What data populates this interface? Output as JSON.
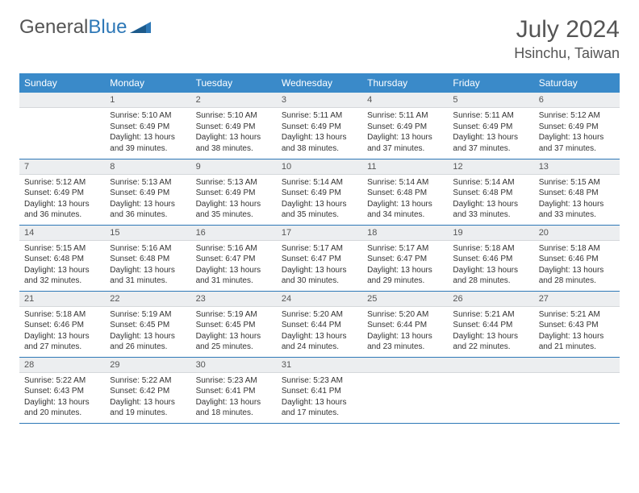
{
  "brand": {
    "part1": "General",
    "part2": "Blue"
  },
  "title": "July 2024",
  "location": "Hsinchu, Taiwan",
  "colors": {
    "header_bg": "#3a8ac9",
    "border": "#2e78b7",
    "daynum_bg": "#eceef0",
    "text": "#333333",
    "muted": "#555555"
  },
  "dayHeaders": [
    "Sunday",
    "Monday",
    "Tuesday",
    "Wednesday",
    "Thursday",
    "Friday",
    "Saturday"
  ],
  "weeks": [
    [
      null,
      {
        "n": "1",
        "sr": "5:10 AM",
        "ss": "6:49 PM",
        "dl": "13 hours and 39 minutes."
      },
      {
        "n": "2",
        "sr": "5:10 AM",
        "ss": "6:49 PM",
        "dl": "13 hours and 38 minutes."
      },
      {
        "n": "3",
        "sr": "5:11 AM",
        "ss": "6:49 PM",
        "dl": "13 hours and 38 minutes."
      },
      {
        "n": "4",
        "sr": "5:11 AM",
        "ss": "6:49 PM",
        "dl": "13 hours and 37 minutes."
      },
      {
        "n": "5",
        "sr": "5:11 AM",
        "ss": "6:49 PM",
        "dl": "13 hours and 37 minutes."
      },
      {
        "n": "6",
        "sr": "5:12 AM",
        "ss": "6:49 PM",
        "dl": "13 hours and 37 minutes."
      }
    ],
    [
      {
        "n": "7",
        "sr": "5:12 AM",
        "ss": "6:49 PM",
        "dl": "13 hours and 36 minutes."
      },
      {
        "n": "8",
        "sr": "5:13 AM",
        "ss": "6:49 PM",
        "dl": "13 hours and 36 minutes."
      },
      {
        "n": "9",
        "sr": "5:13 AM",
        "ss": "6:49 PM",
        "dl": "13 hours and 35 minutes."
      },
      {
        "n": "10",
        "sr": "5:14 AM",
        "ss": "6:49 PM",
        "dl": "13 hours and 35 minutes."
      },
      {
        "n": "11",
        "sr": "5:14 AM",
        "ss": "6:48 PM",
        "dl": "13 hours and 34 minutes."
      },
      {
        "n": "12",
        "sr": "5:14 AM",
        "ss": "6:48 PM",
        "dl": "13 hours and 33 minutes."
      },
      {
        "n": "13",
        "sr": "5:15 AM",
        "ss": "6:48 PM",
        "dl": "13 hours and 33 minutes."
      }
    ],
    [
      {
        "n": "14",
        "sr": "5:15 AM",
        "ss": "6:48 PM",
        "dl": "13 hours and 32 minutes."
      },
      {
        "n": "15",
        "sr": "5:16 AM",
        "ss": "6:48 PM",
        "dl": "13 hours and 31 minutes."
      },
      {
        "n": "16",
        "sr": "5:16 AM",
        "ss": "6:47 PM",
        "dl": "13 hours and 31 minutes."
      },
      {
        "n": "17",
        "sr": "5:17 AM",
        "ss": "6:47 PM",
        "dl": "13 hours and 30 minutes."
      },
      {
        "n": "18",
        "sr": "5:17 AM",
        "ss": "6:47 PM",
        "dl": "13 hours and 29 minutes."
      },
      {
        "n": "19",
        "sr": "5:18 AM",
        "ss": "6:46 PM",
        "dl": "13 hours and 28 minutes."
      },
      {
        "n": "20",
        "sr": "5:18 AM",
        "ss": "6:46 PM",
        "dl": "13 hours and 28 minutes."
      }
    ],
    [
      {
        "n": "21",
        "sr": "5:18 AM",
        "ss": "6:46 PM",
        "dl": "13 hours and 27 minutes."
      },
      {
        "n": "22",
        "sr": "5:19 AM",
        "ss": "6:45 PM",
        "dl": "13 hours and 26 minutes."
      },
      {
        "n": "23",
        "sr": "5:19 AM",
        "ss": "6:45 PM",
        "dl": "13 hours and 25 minutes."
      },
      {
        "n": "24",
        "sr": "5:20 AM",
        "ss": "6:44 PM",
        "dl": "13 hours and 24 minutes."
      },
      {
        "n": "25",
        "sr": "5:20 AM",
        "ss": "6:44 PM",
        "dl": "13 hours and 23 minutes."
      },
      {
        "n": "26",
        "sr": "5:21 AM",
        "ss": "6:44 PM",
        "dl": "13 hours and 22 minutes."
      },
      {
        "n": "27",
        "sr": "5:21 AM",
        "ss": "6:43 PM",
        "dl": "13 hours and 21 minutes."
      }
    ],
    [
      {
        "n": "28",
        "sr": "5:22 AM",
        "ss": "6:43 PM",
        "dl": "13 hours and 20 minutes."
      },
      {
        "n": "29",
        "sr": "5:22 AM",
        "ss": "6:42 PM",
        "dl": "13 hours and 19 minutes."
      },
      {
        "n": "30",
        "sr": "5:23 AM",
        "ss": "6:41 PM",
        "dl": "13 hours and 18 minutes."
      },
      {
        "n": "31",
        "sr": "5:23 AM",
        "ss": "6:41 PM",
        "dl": "13 hours and 17 minutes."
      },
      null,
      null,
      null
    ]
  ],
  "labels": {
    "sunrise": "Sunrise:",
    "sunset": "Sunset:",
    "daylight": "Daylight:"
  }
}
